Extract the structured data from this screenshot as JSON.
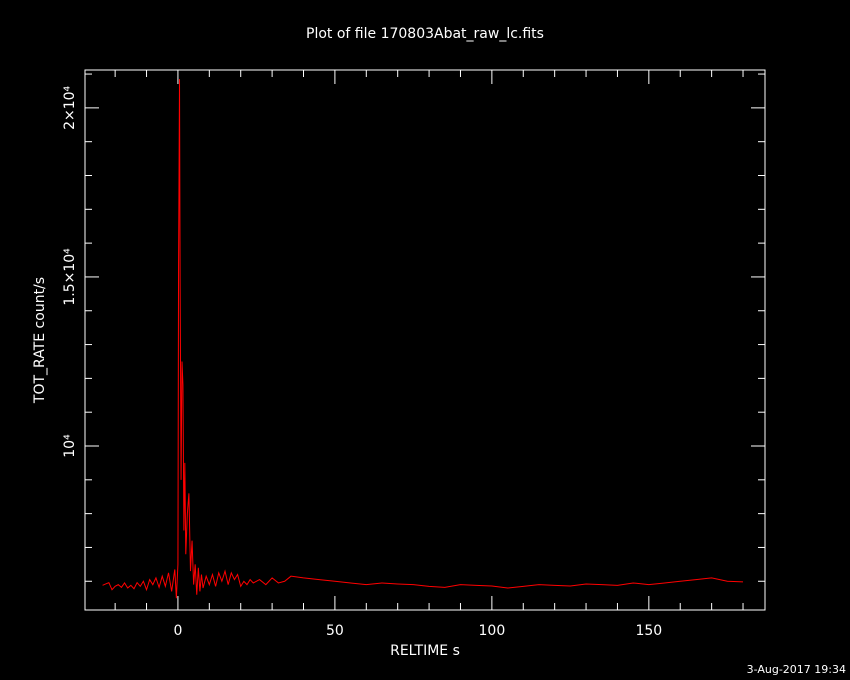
{
  "chart_data": {
    "type": "line",
    "title": "Plot of file 170803Abat_raw_lc.fits",
    "xlabel": "RELTIME  s",
    "ylabel": "TOT_RATE  count/s",
    "footer": "3-Aug-2017 19:34",
    "xlim": [
      -29.6,
      187
    ],
    "ylim": [
      5150,
      21120
    ],
    "xticks": [
      0,
      50,
      100,
      150
    ],
    "yticks": [
      {
        "value": 10000,
        "label": "10⁴"
      },
      {
        "value": 15000,
        "label": "1.5×10⁴"
      },
      {
        "value": 20000,
        "label": "2×10⁴"
      }
    ],
    "xminor_ticks": [
      -20,
      -10,
      10,
      20,
      30,
      40,
      60,
      70,
      80,
      90,
      110,
      120,
      130,
      140,
      160,
      170,
      180
    ],
    "yminor_ticks": [
      6000,
      7000,
      8000,
      9000,
      11000,
      12000,
      13000,
      14000,
      16000,
      17000,
      18000,
      19000,
      21000
    ],
    "series": [
      {
        "name": "TOT_RATE",
        "color": "#ff0000",
        "x": [
          -24,
          -23,
          -22,
          -21,
          -20,
          -19,
          -18,
          -17,
          -16,
          -15,
          -14,
          -13,
          -12,
          -11,
          -10,
          -9,
          -8,
          -7,
          -6,
          -5,
          -4,
          -3,
          -2,
          -1,
          -0.5,
          0,
          0.2,
          0.5,
          0.7,
          1,
          1.3,
          1.6,
          1.9,
          2.2,
          2.5,
          3,
          3.5,
          4,
          4.5,
          5,
          5.5,
          6,
          6.5,
          7,
          7.5,
          8,
          9,
          10,
          11,
          12,
          13,
          14,
          15,
          16,
          17,
          18,
          19,
          20,
          21,
          22,
          23,
          24,
          26,
          28,
          30,
          32,
          34,
          36,
          40,
          45,
          50,
          55,
          60,
          65,
          70,
          75,
          80,
          85,
          90,
          95,
          100,
          105,
          110,
          115,
          120,
          125,
          130,
          135,
          140,
          145,
          150,
          155,
          160,
          165,
          170,
          175,
          180
        ],
        "values": [
          5880,
          5920,
          5960,
          5750,
          5850,
          5900,
          5820,
          5950,
          5800,
          5880,
          5780,
          5960,
          5850,
          6000,
          5750,
          6050,
          5900,
          6100,
          5820,
          6150,
          5850,
          6250,
          5700,
          6350,
          5500,
          6500,
          15300,
          20850,
          14800,
          9000,
          12500,
          11800,
          7500,
          9500,
          6800,
          8000,
          8600,
          6300,
          7200,
          5900,
          6500,
          5600,
          6400,
          5700,
          6200,
          5800,
          6150,
          5900,
          6200,
          5850,
          6250,
          6000,
          6300,
          5900,
          6250,
          6050,
          6200,
          5850,
          6000,
          5900,
          6050,
          5950,
          6050,
          5900,
          6100,
          5950,
          6000,
          6150,
          6100,
          6050,
          6000,
          5950,
          5900,
          5950,
          5920,
          5900,
          5850,
          5820,
          5900,
          5880,
          5860,
          5800,
          5850,
          5900,
          5880,
          5860,
          5920,
          5900,
          5880,
          5950,
          5900,
          5950,
          6000,
          6050,
          6100,
          6000,
          5980
        ]
      }
    ]
  }
}
